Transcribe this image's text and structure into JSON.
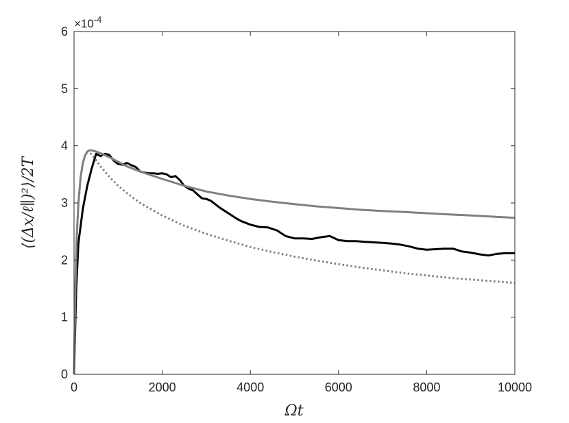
{
  "chart_data": {
    "type": "line",
    "xlabel": "Ωt",
    "ylabel": "⟨(Δx/ℓ∥)²⟩/2T",
    "y_exponent_label": "×10",
    "y_exponent_power": "-4",
    "xlim": [
      0,
      10000
    ],
    "ylim": [
      0,
      6
    ],
    "x_ticks": [
      0,
      2000,
      4000,
      6000,
      8000,
      10000
    ],
    "x_tick_labels": [
      "0",
      "2000",
      "4000",
      "6000",
      "8000",
      "10000"
    ],
    "y_ticks": [
      0,
      1,
      2,
      3,
      4,
      5,
      6
    ],
    "y_tick_labels": [
      "0",
      "1",
      "2",
      "3",
      "4",
      "5",
      "6"
    ],
    "grid": false,
    "series": [
      {
        "color": "#000000",
        "style": "solid",
        "x": [
          0,
          50,
          100,
          200,
          300,
          400,
          500,
          600,
          700,
          800,
          900,
          1000,
          1100,
          1200,
          1300,
          1400,
          1500,
          1600,
          1700,
          1800,
          1900,
          2000,
          2100,
          2200,
          2300,
          2400,
          2500,
          2600,
          2700,
          2800,
          2900,
          3000,
          3100,
          3200,
          3300,
          3400,
          3500,
          3600,
          3700,
          3800,
          3900,
          4000,
          4200,
          4400,
          4600,
          4800,
          5000,
          5200,
          5400,
          5600,
          5800,
          6000,
          6200,
          6400,
          6600,
          6800,
          7000,
          7200,
          7400,
          7600,
          7800,
          8000,
          8200,
          8400,
          8600,
          8800,
          9000,
          9200,
          9400,
          9600,
          9800,
          10000
        ],
        "y": [
          0,
          1.5,
          2.3,
          2.9,
          3.3,
          3.6,
          3.86,
          3.82,
          3.86,
          3.84,
          3.74,
          3.68,
          3.67,
          3.7,
          3.66,
          3.63,
          3.55,
          3.53,
          3.52,
          3.52,
          3.51,
          3.52,
          3.5,
          3.45,
          3.47,
          3.4,
          3.3,
          3.25,
          3.22,
          3.15,
          3.08,
          3.07,
          3.04,
          2.98,
          2.92,
          2.87,
          2.82,
          2.77,
          2.72,
          2.68,
          2.65,
          2.62,
          2.58,
          2.57,
          2.52,
          2.42,
          2.38,
          2.38,
          2.37,
          2.4,
          2.42,
          2.35,
          2.33,
          2.33,
          2.32,
          2.31,
          2.3,
          2.29,
          2.27,
          2.24,
          2.2,
          2.18,
          2.19,
          2.2,
          2.2,
          2.15,
          2.13,
          2.1,
          2.08,
          2.11,
          2.12,
          2.12
        ]
      },
      {
        "color": "#808080",
        "style": "solid",
        "x": [
          0,
          30,
          60,
          100,
          150,
          200,
          250,
          300,
          350,
          400,
          450,
          500,
          600,
          800,
          1000,
          1200,
          1500,
          2000,
          2500,
          3000,
          3500,
          4000,
          4500,
          5000,
          5500,
          6000,
          6500,
          7000,
          7500,
          8000,
          8500,
          9000,
          9500,
          10000
        ],
        "y": [
          0,
          1.5,
          2.4,
          3.0,
          3.45,
          3.7,
          3.83,
          3.9,
          3.92,
          3.92,
          3.91,
          3.9,
          3.87,
          3.8,
          3.72,
          3.64,
          3.55,
          3.42,
          3.3,
          3.2,
          3.13,
          3.07,
          3.02,
          2.98,
          2.94,
          2.91,
          2.88,
          2.86,
          2.84,
          2.82,
          2.8,
          2.78,
          2.76,
          2.74
        ]
      },
      {
        "color": "#808080",
        "style": "dotted",
        "x": [
          0,
          30,
          60,
          100,
          150,
          200,
          250,
          300,
          350,
          400,
          500,
          600,
          800,
          1000,
          1200,
          1500,
          2000,
          2500,
          3000,
          3500,
          4000,
          4500,
          5000,
          5500,
          6000,
          6500,
          7000,
          7500,
          8000,
          8500,
          9000,
          9500,
          10000
        ],
        "y": [
          0,
          1.5,
          2.4,
          3.0,
          3.45,
          3.7,
          3.83,
          3.88,
          3.88,
          3.85,
          3.75,
          3.64,
          3.46,
          3.3,
          3.17,
          3.0,
          2.78,
          2.6,
          2.46,
          2.34,
          2.23,
          2.14,
          2.06,
          1.99,
          1.93,
          1.87,
          1.82,
          1.77,
          1.73,
          1.69,
          1.66,
          1.63,
          1.6
        ]
      }
    ]
  }
}
